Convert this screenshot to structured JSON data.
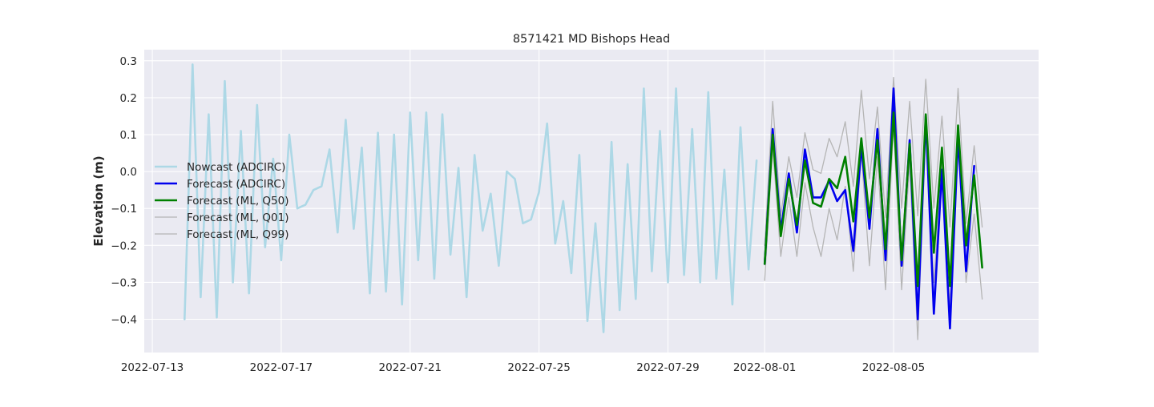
{
  "chart_data": {
    "type": "line",
    "title": "8571421 MD Bishops Head",
    "xlabel": "",
    "ylabel": "Elevation (m)",
    "xlim": [
      "2022-07-12T18:00",
      "2022-08-09T12:00"
    ],
    "ylim": [
      -0.49,
      0.33
    ],
    "grid": true,
    "background": "#eaeaf2",
    "legend_position": "center-left",
    "xticks": [
      "2022-07-13",
      "2022-07-17",
      "2022-07-21",
      "2022-07-25",
      "2022-07-29",
      "2022-08-01",
      "2022-08-05"
    ],
    "yticks": [
      0.3,
      0.2,
      0.1,
      0.0,
      -0.1,
      -0.2,
      -0.3,
      -0.4
    ],
    "ytick_labels": [
      "0.3",
      "0.2",
      "0.1",
      "0.0",
      "−0.1",
      "−0.2",
      "−0.3",
      "−0.4"
    ],
    "series": [
      {
        "name": "Nowcast (ADCIRC)",
        "color": "#add8e6",
        "width": 2.6,
        "x": [
          "2022-07-14T00:00",
          "2022-07-14T06:00",
          "2022-07-14T12:00",
          "2022-07-14T18:00",
          "2022-07-15T00:00",
          "2022-07-15T06:00",
          "2022-07-15T12:00",
          "2022-07-15T18:00",
          "2022-07-16T00:00",
          "2022-07-16T06:00",
          "2022-07-16T12:00",
          "2022-07-16T18:00",
          "2022-07-17T00:00",
          "2022-07-17T06:00",
          "2022-07-17T12:00",
          "2022-07-17T18:00",
          "2022-07-18T00:00",
          "2022-07-18T06:00",
          "2022-07-18T12:00",
          "2022-07-18T18:00",
          "2022-07-19T00:00",
          "2022-07-19T06:00",
          "2022-07-19T12:00",
          "2022-07-19T18:00",
          "2022-07-20T00:00",
          "2022-07-20T06:00",
          "2022-07-20T12:00",
          "2022-07-20T18:00",
          "2022-07-21T00:00",
          "2022-07-21T06:00",
          "2022-07-21T12:00",
          "2022-07-21T18:00",
          "2022-07-22T00:00",
          "2022-07-22T06:00",
          "2022-07-22T12:00",
          "2022-07-22T18:00",
          "2022-07-23T00:00",
          "2022-07-23T06:00",
          "2022-07-23T12:00",
          "2022-07-23T18:00",
          "2022-07-24T00:00",
          "2022-07-24T06:00",
          "2022-07-24T12:00",
          "2022-07-24T18:00",
          "2022-07-25T00:00",
          "2022-07-25T06:00",
          "2022-07-25T12:00",
          "2022-07-25T18:00",
          "2022-07-26T00:00",
          "2022-07-26T06:00",
          "2022-07-26T12:00",
          "2022-07-26T18:00",
          "2022-07-27T00:00",
          "2022-07-27T06:00",
          "2022-07-27T12:00",
          "2022-07-27T18:00",
          "2022-07-28T00:00",
          "2022-07-28T06:00",
          "2022-07-28T12:00",
          "2022-07-28T18:00",
          "2022-07-29T00:00",
          "2022-07-29T06:00",
          "2022-07-29T12:00",
          "2022-07-29T18:00",
          "2022-07-30T00:00",
          "2022-07-30T06:00",
          "2022-07-30T12:00",
          "2022-07-30T18:00",
          "2022-07-31T00:00",
          "2022-07-31T06:00",
          "2022-07-31T12:00",
          "2022-07-31T18:00"
        ],
        "values": [
          -0.4,
          0.29,
          -0.34,
          0.155,
          -0.395,
          0.245,
          -0.3,
          0.11,
          -0.33,
          0.18,
          -0.205,
          0.035,
          -0.24,
          0.1,
          -0.1,
          -0.09,
          -0.05,
          -0.04,
          0.06,
          -0.165,
          0.14,
          -0.155,
          0.065,
          -0.33,
          0.105,
          -0.325,
          0.1,
          -0.36,
          0.16,
          -0.24,
          0.16,
          -0.29,
          0.155,
          -0.225,
          0.01,
          -0.34,
          0.045,
          -0.16,
          -0.06,
          -0.255,
          0.0,
          -0.02,
          -0.14,
          -0.13,
          -0.055,
          0.13,
          -0.195,
          -0.08,
          -0.275,
          0.045,
          -0.405,
          -0.14,
          -0.435,
          0.08,
          -0.375,
          0.02,
          -0.345,
          0.225,
          -0.27,
          0.11,
          -0.3,
          0.225,
          -0.28,
          0.115,
          -0.3,
          0.215,
          -0.29,
          0.005,
          -0.36,
          0.12,
          -0.265,
          0.03
        ]
      },
      {
        "name": "Forecast (ADCIRC)",
        "color": "#0000ee",
        "width": 2.6,
        "x": [
          "2022-08-01T00:00",
          "2022-08-01T06:00",
          "2022-08-01T12:00",
          "2022-08-01T18:00",
          "2022-08-02T00:00",
          "2022-08-02T06:00",
          "2022-08-02T12:00",
          "2022-08-02T18:00",
          "2022-08-03T00:00",
          "2022-08-03T06:00",
          "2022-08-03T12:00",
          "2022-08-03T18:00",
          "2022-08-04T00:00",
          "2022-08-04T06:00",
          "2022-08-04T12:00",
          "2022-08-04T18:00",
          "2022-08-05T00:00",
          "2022-08-05T06:00",
          "2022-08-05T12:00",
          "2022-08-05T18:00",
          "2022-08-06T00:00",
          "2022-08-06T06:00",
          "2022-08-06T12:00",
          "2022-08-06T18:00",
          "2022-08-07T00:00",
          "2022-08-07T06:00",
          "2022-08-07T12:00"
        ],
        "values": [
          -0.25,
          0.115,
          -0.16,
          -0.005,
          -0.165,
          0.06,
          -0.07,
          -0.07,
          -0.025,
          -0.08,
          -0.05,
          -0.215,
          0.07,
          -0.155,
          0.115,
          -0.24,
          0.225,
          -0.255,
          0.085,
          -0.4,
          0.15,
          -0.385,
          0.005,
          -0.425,
          0.095,
          -0.27,
          0.015
        ]
      },
      {
        "name": "Forecast (ML, Q50)",
        "color": "#008000",
        "width": 2.6,
        "x": [
          "2022-08-01T00:00",
          "2022-08-01T06:00",
          "2022-08-01T12:00",
          "2022-08-01T18:00",
          "2022-08-02T00:00",
          "2022-08-02T06:00",
          "2022-08-02T12:00",
          "2022-08-02T18:00",
          "2022-08-03T00:00",
          "2022-08-03T06:00",
          "2022-08-03T12:00",
          "2022-08-03T18:00",
          "2022-08-04T00:00",
          "2022-08-04T06:00",
          "2022-08-04T12:00",
          "2022-08-04T18:00",
          "2022-08-05T00:00",
          "2022-08-05T06:00",
          "2022-08-05T12:00",
          "2022-08-05T18:00",
          "2022-08-06T00:00",
          "2022-08-06T06:00",
          "2022-08-06T12:00",
          "2022-08-06T18:00",
          "2022-08-07T00:00",
          "2022-08-07T06:00",
          "2022-08-07T12:00",
          "2022-08-07T18:00"
        ],
        "values": [
          -0.25,
          0.1,
          -0.175,
          -0.02,
          -0.145,
          0.03,
          -0.085,
          -0.095,
          -0.02,
          -0.045,
          0.04,
          -0.135,
          0.09,
          -0.125,
          0.085,
          -0.21,
          0.16,
          -0.24,
          0.075,
          -0.31,
          0.155,
          -0.22,
          0.065,
          -0.31,
          0.125,
          -0.2,
          -0.01,
          -0.26
        ]
      },
      {
        "name": "Forecast (ML, Q01)",
        "color": "#b5b5b5",
        "width": 1.3,
        "x": [
          "2022-08-01T00:00",
          "2022-08-01T06:00",
          "2022-08-01T12:00",
          "2022-08-01T18:00",
          "2022-08-02T00:00",
          "2022-08-02T06:00",
          "2022-08-02T12:00",
          "2022-08-02T18:00",
          "2022-08-03T00:00",
          "2022-08-03T06:00",
          "2022-08-03T12:00",
          "2022-08-03T18:00",
          "2022-08-04T00:00",
          "2022-08-04T06:00",
          "2022-08-04T12:00",
          "2022-08-04T18:00",
          "2022-08-05T00:00",
          "2022-08-05T06:00",
          "2022-08-05T12:00",
          "2022-08-05T18:00",
          "2022-08-06T00:00",
          "2022-08-06T06:00",
          "2022-08-06T12:00",
          "2022-08-06T18:00",
          "2022-08-07T00:00",
          "2022-08-07T06:00",
          "2022-08-07T12:00",
          "2022-08-07T18:00"
        ],
        "values": [
          -0.295,
          0.065,
          -0.23,
          -0.07,
          -0.23,
          -0.03,
          -0.15,
          -0.23,
          -0.1,
          -0.185,
          -0.04,
          -0.27,
          0.05,
          -0.255,
          0.04,
          -0.32,
          0.125,
          -0.32,
          0.025,
          -0.455,
          0.11,
          -0.3,
          0.02,
          -0.36,
          0.08,
          -0.3,
          -0.115,
          -0.345
        ]
      },
      {
        "name": "Forecast (ML, Q99)",
        "color": "#b5b5b5",
        "width": 1.3,
        "x": [
          "2022-08-01T00:00",
          "2022-08-01T06:00",
          "2022-08-01T12:00",
          "2022-08-01T18:00",
          "2022-08-02T00:00",
          "2022-08-02T06:00",
          "2022-08-02T12:00",
          "2022-08-02T18:00",
          "2022-08-03T00:00",
          "2022-08-03T06:00",
          "2022-08-03T12:00",
          "2022-08-03T18:00",
          "2022-08-04T00:00",
          "2022-08-04T06:00",
          "2022-08-04T12:00",
          "2022-08-04T18:00",
          "2022-08-05T00:00",
          "2022-08-05T06:00",
          "2022-08-05T12:00",
          "2022-08-05T18:00",
          "2022-08-06T00:00",
          "2022-08-06T06:00",
          "2022-08-06T12:00",
          "2022-08-06T18:00",
          "2022-08-07T00:00",
          "2022-08-07T06:00",
          "2022-08-07T12:00",
          "2022-08-07T18:00"
        ],
        "values": [
          -0.2,
          0.19,
          -0.12,
          0.04,
          -0.07,
          0.105,
          0.005,
          -0.005,
          0.09,
          0.04,
          0.135,
          -0.04,
          0.22,
          -0.02,
          0.175,
          -0.125,
          0.255,
          -0.1,
          0.19,
          -0.12,
          0.25,
          -0.1,
          0.15,
          -0.15,
          0.225,
          -0.14,
          0.07,
          -0.15
        ]
      }
    ]
  }
}
